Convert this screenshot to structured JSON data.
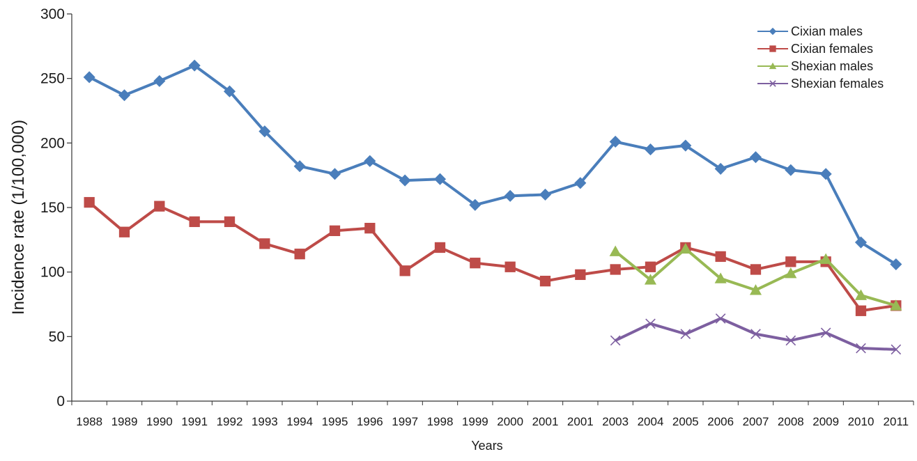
{
  "chart_data": {
    "type": "line",
    "xlabel": "Years",
    "ylabel": "Incidence rate (1/100,000)",
    "ylim": [
      0,
      300
    ],
    "yticks": [
      0,
      50,
      100,
      150,
      200,
      250,
      300
    ],
    "categories": [
      "1988",
      "1989",
      "1990",
      "1991",
      "1992",
      "1993",
      "1994",
      "1995",
      "1996",
      "1997",
      "1998",
      "1999",
      "2000",
      "2001",
      "2001",
      "2003",
      "2004",
      "2005",
      "2006",
      "2007",
      "2008",
      "2009",
      "2010",
      "2011"
    ],
    "legend_position": "top-right",
    "grid": false,
    "series": [
      {
        "name": "Cixian males",
        "color": "#4a7ebb",
        "marker": "diamond",
        "values": [
          251,
          237,
          248,
          260,
          240,
          209,
          182,
          176,
          186,
          171,
          172,
          152,
          159,
          160,
          169,
          201,
          195,
          198,
          180,
          189,
          179,
          176,
          123,
          106
        ]
      },
      {
        "name": "Cixian females",
        "color": "#be4b48",
        "marker": "square",
        "values": [
          154,
          131,
          151,
          139,
          139,
          122,
          114,
          132,
          134,
          101,
          119,
          107,
          104,
          93,
          98,
          102,
          104,
          119,
          112,
          102,
          108,
          108,
          70,
          74
        ]
      },
      {
        "name": "Shexian males",
        "color": "#98b954",
        "marker": "triangle",
        "values": [
          null,
          null,
          null,
          null,
          null,
          null,
          null,
          null,
          null,
          null,
          null,
          null,
          null,
          null,
          null,
          116,
          94,
          118,
          95,
          86,
          99,
          110,
          82,
          74
        ]
      },
      {
        "name": "Shexian females",
        "color": "#7d5fa0",
        "marker": "x",
        "values": [
          null,
          null,
          null,
          null,
          null,
          null,
          null,
          null,
          null,
          null,
          null,
          null,
          null,
          null,
          null,
          47,
          60,
          52,
          64,
          52,
          47,
          53,
          41,
          40
        ]
      }
    ]
  }
}
